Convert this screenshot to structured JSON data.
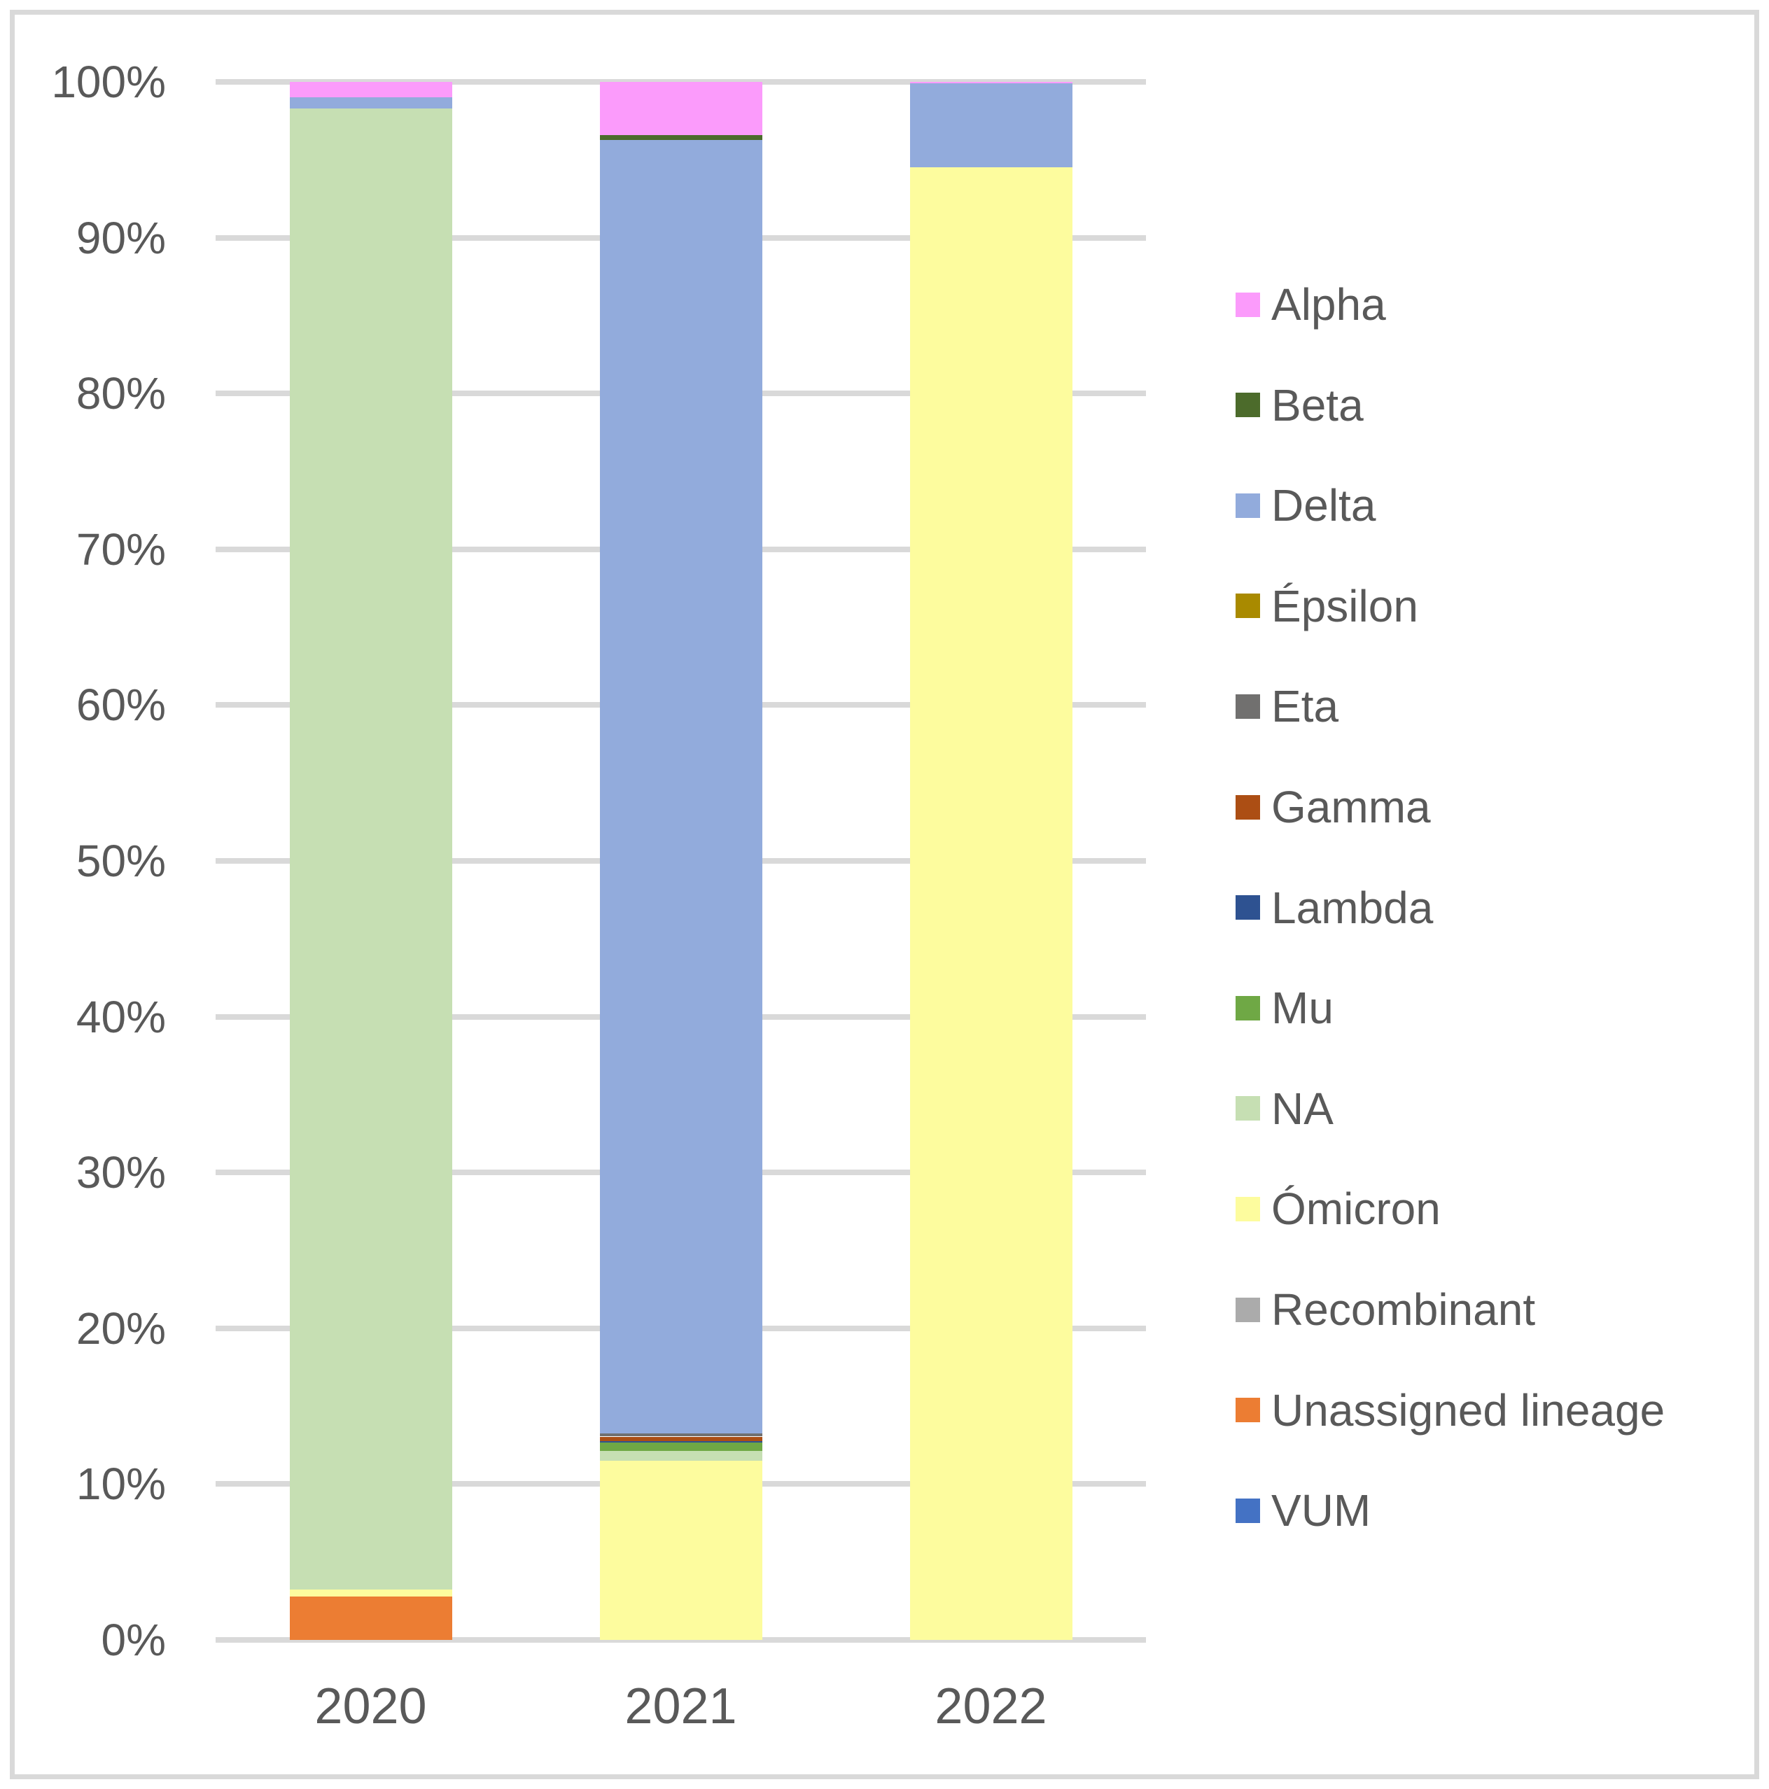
{
  "page": {
    "background": "#FFFFFF",
    "frame_border_color": "#D9D9D9",
    "gridline_color": "#D9D9D9",
    "text_color": "#595959"
  },
  "chart_data": {
    "type": "bar",
    "stacked": true,
    "units": "percent",
    "title": "",
    "xlabel": "",
    "ylabel": "",
    "categories": [
      "2020",
      "2021",
      "2022"
    ],
    "series": [
      {
        "name": "Alpha",
        "color": "#FB9BFB",
        "values": [
          1.0,
          3.4,
          0.1
        ]
      },
      {
        "name": "Beta",
        "color": "#4C6B2B",
        "values": [
          0,
          0.35,
          0
        ]
      },
      {
        "name": "Delta",
        "color": "#92ABDC",
        "values": [
          0.7,
          83.0,
          5.4
        ]
      },
      {
        "name": "Épsilon",
        "color": "#A98A00",
        "values": [
          0,
          0,
          0
        ]
      },
      {
        "name": "Eta",
        "color": "#71706F",
        "values": [
          0,
          0.2,
          0
        ]
      },
      {
        "name": "Gamma",
        "color": "#AC4E14",
        "values": [
          0,
          0.3,
          0
        ]
      },
      {
        "name": "Lambda",
        "color": "#2E5291",
        "values": [
          0,
          0.1,
          0
        ]
      },
      {
        "name": "Mu",
        "color": "#6FA845",
        "values": [
          0,
          0.5,
          0
        ]
      },
      {
        "name": "NA",
        "color": "#C6DFB3",
        "values": [
          95.05,
          0.65,
          0
        ]
      },
      {
        "name": "Ómicron",
        "color": "#FDFC9E",
        "values": [
          0.45,
          11.5,
          94.5
        ]
      },
      {
        "name": "Recombinant",
        "color": "#ABABAB",
        "values": [
          0,
          0,
          0
        ]
      },
      {
        "name": "Unassigned lineage",
        "color": "#EC7D33",
        "values": [
          2.8,
          0,
          0
        ]
      },
      {
        "name": "VUM",
        "color": "#4472C4",
        "values": [
          0,
          0,
          0
        ]
      }
    ],
    "stack_order_bottom_to_top": [
      "VUM",
      "Unassigned lineage",
      "Recombinant",
      "Ómicron",
      "NA",
      "Mu",
      "Lambda",
      "Gamma",
      "Eta",
      "Épsilon",
      "Delta",
      "Beta",
      "Alpha"
    ],
    "ylim": [
      0,
      100
    ],
    "y_ticks": [
      "0%",
      "10%",
      "20%",
      "30%",
      "40%",
      "50%",
      "60%",
      "70%",
      "80%",
      "90%",
      "100%"
    ],
    "grid": true,
    "legend_position": "right"
  }
}
